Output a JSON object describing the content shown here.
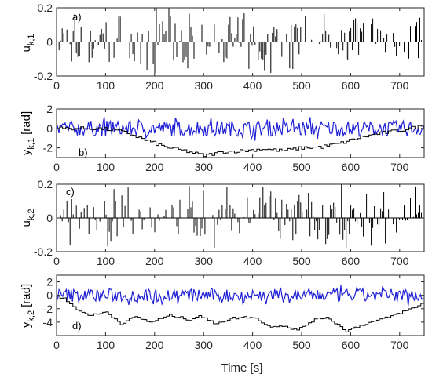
{
  "figure": {
    "xlabel": "Time [s]"
  },
  "chart_data": [
    {
      "type": "bar",
      "annotation": "a)",
      "ylabel_main": "u",
      "ylabel_sub": "k,1",
      "xlim": [
        0,
        750
      ],
      "ylim": [
        -0.2,
        0.2
      ],
      "xticks": [
        "0",
        "100",
        "200",
        "300",
        "400",
        "500",
        "600",
        "700"
      ],
      "yticks": [
        "-0.2",
        "0",
        "0.2"
      ],
      "color": "#000000",
      "series": [
        {
          "kind": "impulse",
          "amplitude_max": 0.2
        }
      ]
    },
    {
      "type": "line",
      "annotation": "b)",
      "ylabel_main": "y",
      "ylabel_sub": "k,1",
      "ylabel_unit": "[rad]",
      "xlim": [
        0,
        750
      ],
      "ylim": [
        -3,
        2
      ],
      "xticks": [
        "0",
        "100",
        "200",
        "300",
        "400",
        "500",
        "600",
        "700"
      ],
      "yticks": [
        "-2",
        "0",
        "2"
      ],
      "series": [
        {
          "kind": "noise",
          "color": "#1f1fd6",
          "center": 0,
          "amplitude": 0.8
        },
        {
          "kind": "step",
          "color": "#000000",
          "x": [
            0,
            80,
            120,
            150,
            180,
            220,
            260,
            300,
            340,
            380,
            420,
            460,
            500,
            540,
            580,
            620,
            660,
            700,
            750
          ],
          "y": [
            0,
            0,
            -0.2,
            -0.6,
            -1.2,
            -1.9,
            -2.3,
            -2.8,
            -2.4,
            -2.3,
            -2.1,
            -2.3,
            -2.0,
            -1.9,
            -1.5,
            -0.9,
            -0.5,
            -0.2,
            0.3
          ]
        }
      ]
    },
    {
      "type": "bar",
      "annotation": "c)",
      "ylabel_main": "u",
      "ylabel_sub": "k,2",
      "xlim": [
        0,
        750
      ],
      "ylim": [
        -0.2,
        0.2
      ],
      "xticks": [
        "0",
        "100",
        "200",
        "300",
        "400",
        "500",
        "600",
        "700"
      ],
      "yticks": [
        "-0.2",
        "0",
        "0.2"
      ],
      "color": "#000000",
      "series": [
        {
          "kind": "impulse",
          "amplitude_max": 0.2
        }
      ]
    },
    {
      "type": "line",
      "annotation": "d)",
      "ylabel_main": "y",
      "ylabel_sub": "k,2",
      "ylabel_unit": "[rad]",
      "xlim": [
        0,
        750
      ],
      "ylim": [
        -6,
        3
      ],
      "xticks": [
        "0",
        "100",
        "200",
        "300",
        "400",
        "500",
        "600",
        "700"
      ],
      "yticks": [
        "-4",
        "-2",
        "0",
        "2"
      ],
      "series": [
        {
          "kind": "noise",
          "color": "#1f1fd6",
          "center": 0,
          "amplitude": 1.0
        },
        {
          "kind": "step",
          "color": "#000000",
          "x": [
            0,
            20,
            40,
            70,
            100,
            130,
            160,
            190,
            230,
            270,
            290,
            320,
            360,
            400,
            430,
            460,
            490,
            520,
            550,
            590,
            630,
            670,
            700,
            730,
            750
          ],
          "y": [
            0,
            -0.8,
            -2.2,
            -3.0,
            -2.5,
            -4.2,
            -3.2,
            -4.0,
            -3.0,
            -3.6,
            -3.0,
            -4.2,
            -3.4,
            -3.2,
            -4.6,
            -4.5,
            -5.2,
            -3.8,
            -3.2,
            -5.3,
            -4.2,
            -3.4,
            -2.6,
            -1.8,
            -1.0
          ]
        }
      ]
    }
  ]
}
